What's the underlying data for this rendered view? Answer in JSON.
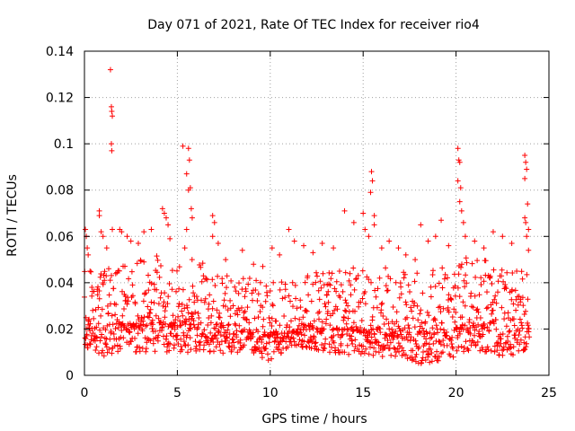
{
  "chart_data": {
    "type": "scatter",
    "title": "Day 071 of 2021, Rate Of TEC Index for receiver rio4",
    "xlabel": "GPS time / hours",
    "ylabel": "ROTI / TECUs",
    "xlim": [
      0,
      25
    ],
    "ylim": [
      0,
      0.14
    ],
    "x_ticks": [
      0,
      5,
      10,
      15,
      20,
      25
    ],
    "y_ticks": [
      0,
      0.02,
      0.04,
      0.06,
      0.08,
      0.1,
      0.12,
      0.14
    ],
    "x_tick_labels": [
      "0",
      "5",
      "10",
      "15",
      "20",
      "25"
    ],
    "y_tick_labels": [
      "0",
      "0.02",
      "0.04",
      "0.06",
      "0.08",
      "0.1",
      "0.12",
      "0.14"
    ],
    "grid": true,
    "marker": "+",
    "marker_color": "#ff0000",
    "series": [
      {
        "name": "ROTI",
        "points": [
          [
            0.05,
            0.063
          ],
          [
            0.1,
            0.06
          ],
          [
            0.15,
            0.055
          ],
          [
            0.2,
            0.052
          ],
          [
            0.3,
            0.045
          ],
          [
            0.4,
            0.038
          ],
          [
            0.8,
            0.071
          ],
          [
            0.8,
            0.069
          ],
          [
            0.9,
            0.062
          ],
          [
            1.0,
            0.06
          ],
          [
            1.2,
            0.055
          ],
          [
            1.4,
            0.132
          ],
          [
            1.45,
            0.116
          ],
          [
            1.47,
            0.114
          ],
          [
            1.5,
            0.112
          ],
          [
            1.45,
            0.1
          ],
          [
            1.47,
            0.097
          ],
          [
            1.5,
            0.063
          ],
          [
            1.9,
            0.063
          ],
          [
            2.0,
            0.062
          ],
          [
            2.3,
            0.06
          ],
          [
            2.5,
            0.058
          ],
          [
            2.9,
            0.057
          ],
          [
            3.2,
            0.062
          ],
          [
            3.6,
            0.063
          ],
          [
            4.2,
            0.072
          ],
          [
            4.3,
            0.07
          ],
          [
            4.4,
            0.068
          ],
          [
            4.5,
            0.065
          ],
          [
            4.6,
            0.059
          ],
          [
            5.3,
            0.099
          ],
          [
            5.6,
            0.098
          ],
          [
            5.65,
            0.093
          ],
          [
            5.5,
            0.087
          ],
          [
            5.7,
            0.081
          ],
          [
            5.6,
            0.08
          ],
          [
            5.75,
            0.072
          ],
          [
            5.8,
            0.068
          ],
          [
            5.5,
            0.063
          ],
          [
            5.4,
            0.055
          ],
          [
            6.9,
            0.069
          ],
          [
            7.0,
            0.066
          ],
          [
            6.9,
            0.06
          ],
          [
            7.2,
            0.057
          ],
          [
            7.6,
            0.05
          ],
          [
            8.5,
            0.054
          ],
          [
            9.1,
            0.048
          ],
          [
            9.6,
            0.047
          ],
          [
            10.1,
            0.055
          ],
          [
            10.5,
            0.052
          ],
          [
            11.0,
            0.063
          ],
          [
            11.3,
            0.058
          ],
          [
            11.8,
            0.056
          ],
          [
            12.3,
            0.053
          ],
          [
            12.8,
            0.057
          ],
          [
            13.4,
            0.055
          ],
          [
            14.0,
            0.071
          ],
          [
            14.5,
            0.066
          ],
          [
            15.0,
            0.07
          ],
          [
            15.1,
            0.063
          ],
          [
            15.3,
            0.06
          ],
          [
            15.45,
            0.088
          ],
          [
            15.5,
            0.084
          ],
          [
            15.4,
            0.079
          ],
          [
            15.6,
            0.069
          ],
          [
            15.6,
            0.065
          ],
          [
            16.0,
            0.055
          ],
          [
            16.4,
            0.058
          ],
          [
            16.9,
            0.055
          ],
          [
            17.3,
            0.052
          ],
          [
            17.8,
            0.05
          ],
          [
            18.1,
            0.065
          ],
          [
            18.5,
            0.058
          ],
          [
            18.9,
            0.06
          ],
          [
            19.2,
            0.067
          ],
          [
            19.6,
            0.056
          ],
          [
            20.1,
            0.098
          ],
          [
            20.15,
            0.093
          ],
          [
            20.2,
            0.092
          ],
          [
            20.1,
            0.084
          ],
          [
            20.25,
            0.081
          ],
          [
            20.2,
            0.075
          ],
          [
            20.3,
            0.071
          ],
          [
            20.4,
            0.066
          ],
          [
            20.5,
            0.06
          ],
          [
            21.0,
            0.058
          ],
          [
            21.5,
            0.055
          ],
          [
            22.0,
            0.062
          ],
          [
            22.5,
            0.06
          ],
          [
            23.0,
            0.057
          ],
          [
            23.7,
            0.095
          ],
          [
            23.75,
            0.092
          ],
          [
            23.8,
            0.089
          ],
          [
            23.7,
            0.085
          ],
          [
            23.85,
            0.074
          ],
          [
            23.7,
            0.068
          ],
          [
            23.75,
            0.066
          ],
          [
            23.9,
            0.063
          ],
          [
            23.8,
            0.06
          ],
          [
            23.9,
            0.054
          ]
        ]
      }
    ],
    "bulk_envelope": {
      "x_start": 0,
      "x_end": 23.95,
      "step": 0.0165,
      "upper": [
        [
          0,
          0.046
        ],
        [
          1,
          0.046
        ],
        [
          2,
          0.05
        ],
        [
          3,
          0.05
        ],
        [
          4,
          0.052
        ],
        [
          5,
          0.05
        ],
        [
          6,
          0.052
        ],
        [
          7,
          0.046
        ],
        [
          8,
          0.042
        ],
        [
          9,
          0.042
        ],
        [
          10,
          0.04
        ],
        [
          11,
          0.046
        ],
        [
          12,
          0.046
        ],
        [
          13,
          0.044
        ],
        [
          14,
          0.046
        ],
        [
          15,
          0.05
        ],
        [
          16,
          0.048
        ],
        [
          17,
          0.046
        ],
        [
          18,
          0.044
        ],
        [
          19,
          0.048
        ],
        [
          20,
          0.052
        ],
        [
          21,
          0.05
        ],
        [
          22,
          0.05
        ],
        [
          23,
          0.046
        ],
        [
          24,
          0.046
        ]
      ],
      "lower": [
        [
          0,
          0.012
        ],
        [
          1,
          0.008
        ],
        [
          2,
          0.01
        ],
        [
          3,
          0.01
        ],
        [
          4,
          0.01
        ],
        [
          5,
          0.01
        ],
        [
          6,
          0.01
        ],
        [
          7,
          0.01
        ],
        [
          8,
          0.009
        ],
        [
          9,
          0.01
        ],
        [
          10,
          0.006
        ],
        [
          11,
          0.012
        ],
        [
          12,
          0.012
        ],
        [
          13,
          0.01
        ],
        [
          14,
          0.009
        ],
        [
          15,
          0.008
        ],
        [
          16,
          0.008
        ],
        [
          17,
          0.008
        ],
        [
          18,
          0.005
        ],
        [
          19,
          0.006
        ],
        [
          20,
          0.008
        ],
        [
          21,
          0.008
        ],
        [
          22,
          0.008
        ],
        [
          23,
          0.008
        ],
        [
          24,
          0.012
        ]
      ],
      "center": [
        [
          0,
          0.02
        ],
        [
          2,
          0.022
        ],
        [
          4,
          0.022
        ],
        [
          6,
          0.022
        ],
        [
          8,
          0.02
        ],
        [
          10,
          0.017
        ],
        [
          12,
          0.02
        ],
        [
          14,
          0.02
        ],
        [
          16,
          0.02
        ],
        [
          18,
          0.018
        ],
        [
          20,
          0.02
        ],
        [
          22,
          0.022
        ],
        [
          24,
          0.02
        ]
      ]
    }
  }
}
